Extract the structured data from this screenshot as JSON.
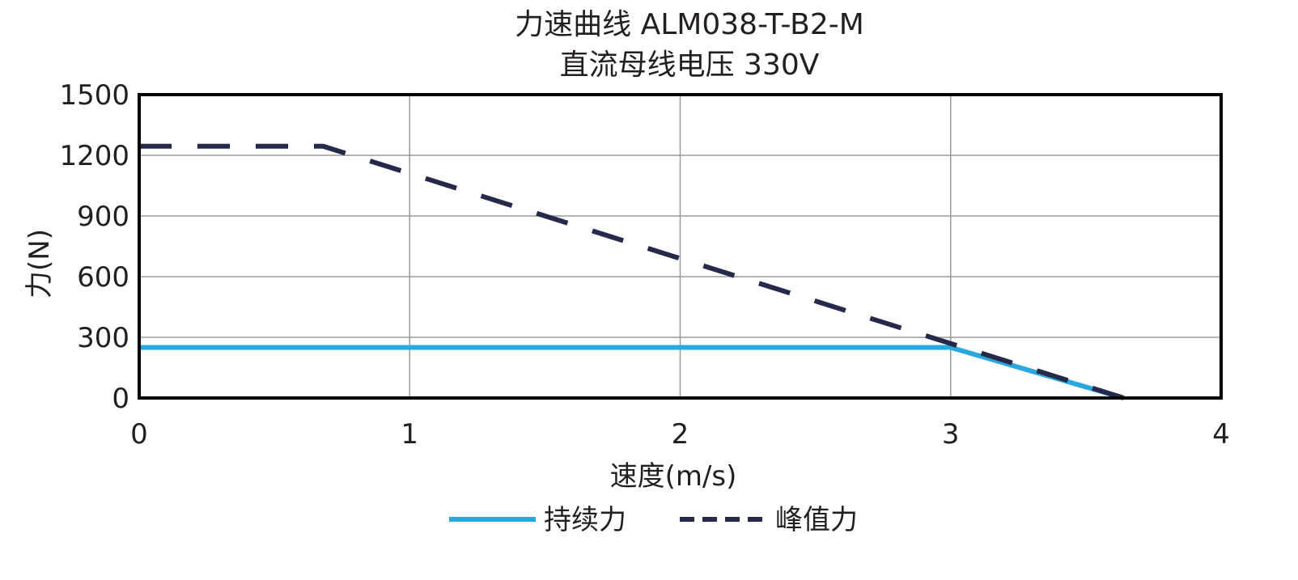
{
  "chart_data": {
    "type": "line",
    "title": "力速曲线 ALM038-T-B2-M",
    "subtitle": "直流母线电压 330V",
    "xlabel": "速度(m/s)",
    "ylabel": "力(N)",
    "xlim": [
      0,
      4
    ],
    "ylim": [
      0,
      1500
    ],
    "xticks": [
      "0",
      "1",
      "2",
      "3",
      "4"
    ],
    "yticks": [
      "0",
      "300",
      "600",
      "900",
      "1200",
      "1500"
    ],
    "grid": true,
    "legend_position": "bottom",
    "series": [
      {
        "name": "持续力",
        "style": "solid",
        "color": "#29a8df",
        "points": [
          [
            0,
            250
          ],
          [
            3.0,
            250
          ],
          [
            3.64,
            0
          ]
        ]
      },
      {
        "name": "峰值力",
        "style": "dashed",
        "color": "#262a4a",
        "points": [
          [
            0,
            1245
          ],
          [
            0.68,
            1245
          ],
          [
            3.64,
            0
          ]
        ]
      }
    ]
  }
}
